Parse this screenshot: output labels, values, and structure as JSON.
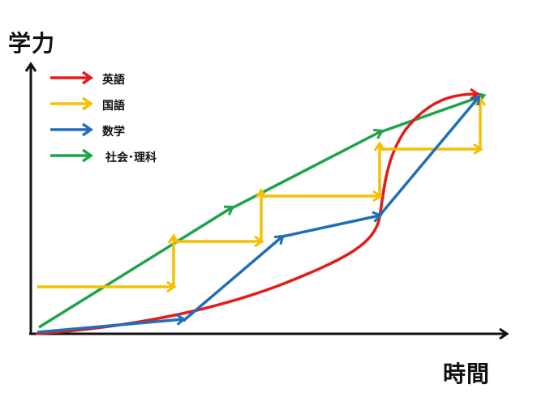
{
  "axes": {
    "y_label": "学力",
    "x_label": "時間"
  },
  "legend": [
    {
      "label": "英語",
      "color": "#e31b1b"
    },
    {
      "label": "国語",
      "color": "#f5c000"
    },
    {
      "label": "数学",
      "color": "#1f6fb8"
    },
    {
      "label": "社会･理科",
      "color": "#1fa34a"
    }
  ]
}
